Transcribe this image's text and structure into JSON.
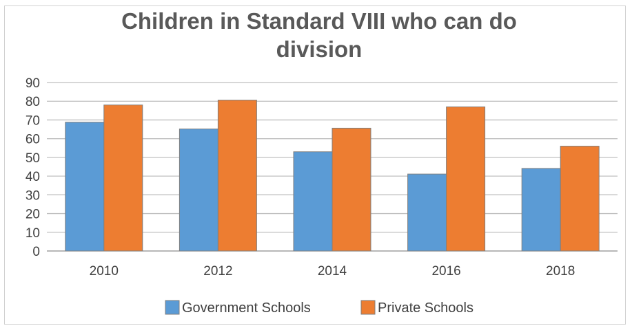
{
  "chart_data": {
    "type": "bar",
    "title_lines": [
      "Children in Standard VIII who can do",
      "division"
    ],
    "categories": [
      "2010",
      "2012",
      "2014",
      "2016",
      "2018"
    ],
    "series": [
      {
        "name": "Government Schools",
        "color": "#5B9BD5",
        "values": [
          68.8,
          65.2,
          53.0,
          41.1,
          44.1
        ]
      },
      {
        "name": "Private Schools",
        "color": "#ED7D31",
        "values": [
          78.0,
          80.6,
          65.6,
          77.0,
          56.0
        ]
      }
    ],
    "ylim": [
      0,
      90
    ],
    "yticks": [
      "0",
      "10",
      "20",
      "30",
      "40",
      "50",
      "60",
      "70",
      "80",
      "90"
    ],
    "grid": true,
    "legend_position": "bottom"
  }
}
